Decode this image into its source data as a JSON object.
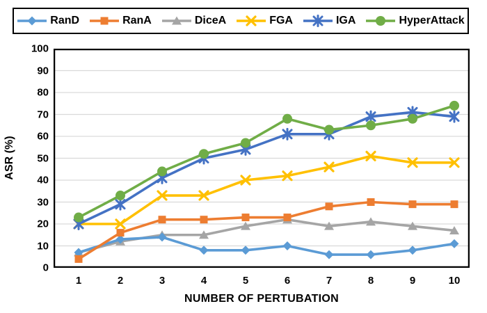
{
  "chart_data": {
    "type": "line",
    "title": "",
    "xlabel": "NUMBER OF PERTUBATION",
    "ylabel": "ASR (%)",
    "categories": [
      "1",
      "2",
      "3",
      "4",
      "5",
      "6",
      "7",
      "8",
      "9",
      "10"
    ],
    "ylim": [
      0,
      100
    ],
    "ytick_step": 10,
    "grid": "horizontal-only",
    "legend_position": "top-outside-boxed",
    "series": [
      {
        "name": "RanD",
        "marker": "diamond",
        "color": "#5B9BD5",
        "values": [
          7,
          13,
          14,
          8,
          8,
          10,
          6,
          6,
          8,
          11
        ]
      },
      {
        "name": "RanA",
        "marker": "square",
        "color": "#ED7D31",
        "values": [
          4,
          16,
          22,
          22,
          23,
          23,
          28,
          30,
          29,
          29
        ]
      },
      {
        "name": "DiceA",
        "marker": "triangle",
        "color": "#A5A5A5",
        "values": [
          7,
          12,
          15,
          15,
          19,
          22,
          19,
          21,
          19,
          17
        ]
      },
      {
        "name": "FGA",
        "marker": "x",
        "color": "#FFC000",
        "values": [
          20,
          20,
          33,
          33,
          40,
          42,
          46,
          51,
          48,
          48
        ]
      },
      {
        "name": "IGA",
        "marker": "asterisk",
        "color": "#4472C4",
        "values": [
          20,
          29,
          41,
          50,
          54,
          61,
          61,
          69,
          71,
          69
        ]
      },
      {
        "name": "HyperAttack",
        "marker": "circle",
        "color": "#70AD47",
        "values": [
          23,
          33,
          44,
          52,
          57,
          68,
          63,
          65,
          68,
          74
        ]
      }
    ],
    "z_order": [
      "DiceA",
      "RanD",
      "RanA",
      "FGA",
      "IGA",
      "HyperAttack"
    ],
    "colors": {
      "gridline": "#D9D9D9",
      "axis_border": "#000000",
      "text": "#000000",
      "background": "#FFFFFF"
    }
  }
}
